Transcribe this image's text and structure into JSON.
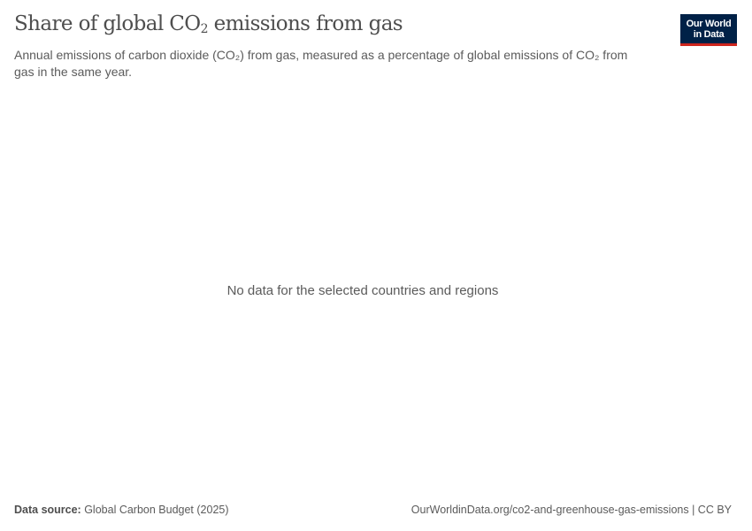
{
  "header": {
    "title_prefix": "Share of global CO",
    "title_sub": "2",
    "title_suffix": " emissions from gas",
    "subtitle": "Annual emissions of carbon dioxide (CO₂) from gas, measured as a percentage of global emissions of CO₂ from gas in the same year.",
    "logo_line1": "Our World",
    "logo_line2": "in Data"
  },
  "chart_data": {
    "type": "",
    "title": "Share of global CO₂ emissions from gas",
    "subtitle": "Annual emissions of carbon dioxide (CO₂) from gas, measured as a percentage of global emissions of CO₂ from gas in the same year.",
    "series": [],
    "message": "No data for the selected countries and regions"
  },
  "footer": {
    "source_label": "Data source:",
    "source_value": " Global Carbon Budget (2025)",
    "url": "OurWorldinData.org/co2-and-greenhouse-gas-emissions | CC BY"
  },
  "colors": {
    "logo_bg": "#002147",
    "logo_accent": "#ce261e",
    "text": "#5b5b5b"
  }
}
